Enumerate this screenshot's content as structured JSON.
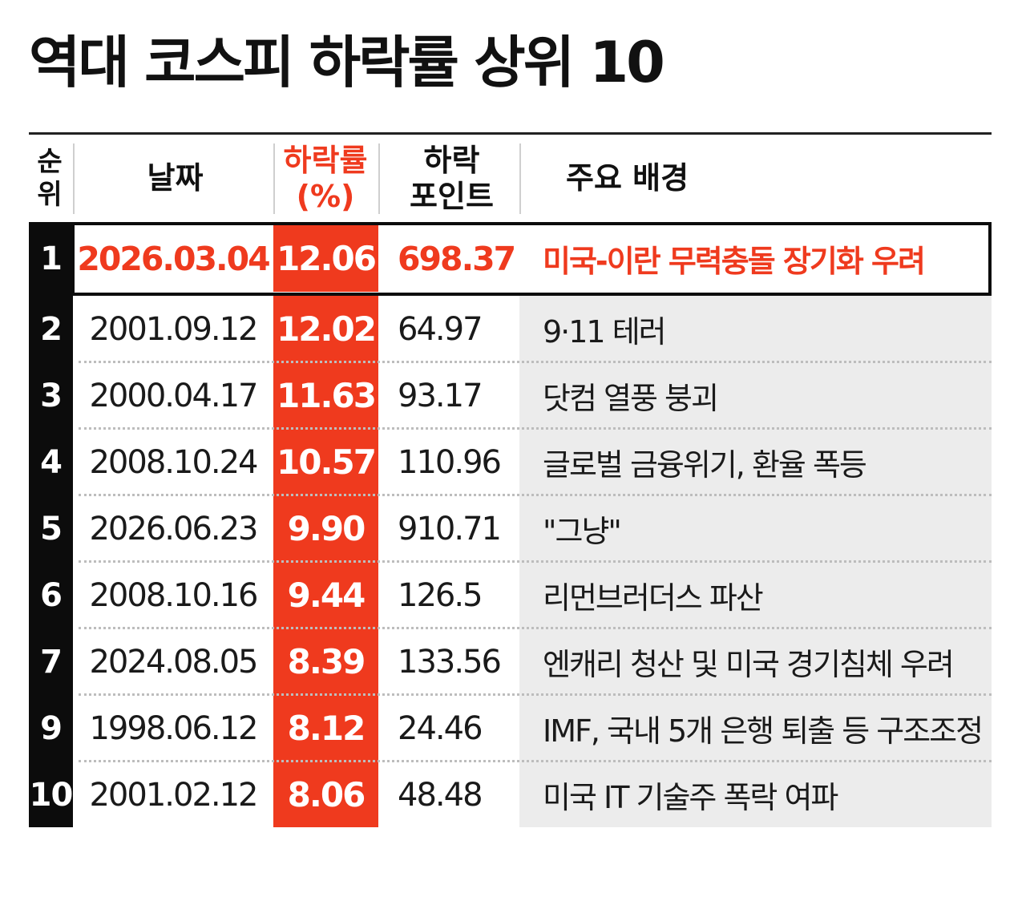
{
  "title": "역대 코스피 하락률 상위 10",
  "columns": {
    "rank": [
      "순",
      "위"
    ],
    "date": "날짜",
    "rate": [
      "하락률",
      "(%)"
    ],
    "points": [
      "하락",
      "포인트"
    ],
    "background": "주요 배경"
  },
  "colors": {
    "accent": "#ef3a1e",
    "rank_bar": "#0c0c0c",
    "background_col": "#ececec"
  },
  "chart_data": {
    "type": "table",
    "title": "역대 코스피 하락률 상위 10",
    "headers": [
      "순위",
      "날짜",
      "하락률(%)",
      "하락 포인트",
      "주요 배경"
    ],
    "rows": [
      {
        "rank": "1",
        "date": "2026.03.04",
        "rate": "12.06",
        "points": "698.37",
        "background": "미국-이란 무력충돌 장기화 우려"
      },
      {
        "rank": "2",
        "date": "2001.09.12",
        "rate": "12.02",
        "points": "64.97",
        "background": "9·11 테러"
      },
      {
        "rank": "3",
        "date": "2000.04.17",
        "rate": "11.63",
        "points": "93.17",
        "background": "닷컴 열풍 붕괴"
      },
      {
        "rank": "4",
        "date": "2008.10.24",
        "rate": "10.57",
        "points": "110.96",
        "background": "글로벌 금융위기, 환율 폭등"
      },
      {
        "rank": "5",
        "date": "2026.06.23",
        "rate": "9.90",
        "points": "910.71",
        "background": "\"그냥\""
      },
      {
        "rank": "6",
        "date": "2008.10.16",
        "rate": "9.44",
        "points": "126.5",
        "background": "리먼브러더스 파산"
      },
      {
        "rank": "7",
        "date": "2024.08.05",
        "rate": "8.39",
        "points": "133.56",
        "background": "엔캐리 청산 및 미국 경기침체 우려"
      },
      {
        "rank": "9",
        "date": "1998.06.12",
        "rate": "8.12",
        "points": "24.46",
        "background": "IMF, 국내 5개 은행 퇴출 등 구조조정"
      },
      {
        "rank": "10",
        "date": "2001.02.12",
        "rate": "8.06",
        "points": "48.48",
        "background": "미국 IT 기술주 폭락 여파"
      }
    ]
  }
}
